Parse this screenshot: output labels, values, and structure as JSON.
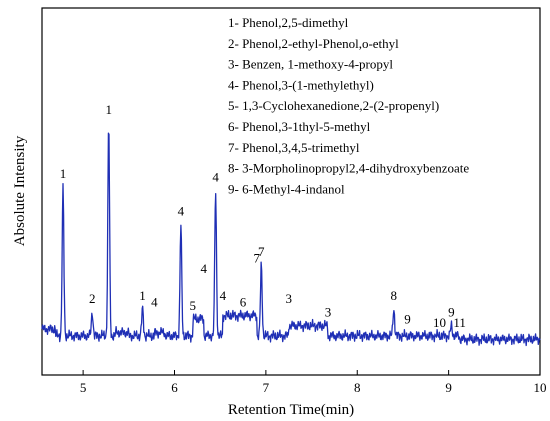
{
  "chart_data": {
    "type": "line",
    "title": "",
    "xlabel": "Retention Time(min)",
    "ylabel": "Absolute Intensity",
    "xlim": [
      4.55,
      10
    ],
    "ylim": [
      0,
      100
    ],
    "x_ticks": [
      5,
      6,
      7,
      8,
      9,
      10
    ],
    "y_ticks": [],
    "grid": false,
    "line_color": "#1f2fb5",
    "legend_placement": "top-right",
    "legend": [
      "1- Phenol,2,5-dimethyl",
      "2- Phenol,2-ethyl-Phenol,o-ethyl",
      "3- Benzen, 1-methoxy-4-propyl",
      "4- Phenol,3-(1-methylethyl)",
      "5- 1,3-Cyclohexanedione,2-(2-propenyl)",
      "6- Phenol,3-1thyl-5-methyl",
      "7- Phenol,3,4,5-trimethyl",
      "8- 3-Morpholinopropyl2,4-dihydroxybenzoate",
      "9- 6-Methyl-4-indanol"
    ],
    "series": [
      {
        "values": [
          {
            "x": 4.55,
            "y": 8
          },
          {
            "x": 4.7,
            "y": 5
          },
          {
            "x": 4.78,
            "y": 47
          },
          {
            "x": 4.85,
            "y": 3
          },
          {
            "x": 5.0,
            "y": 3
          },
          {
            "x": 5.1,
            "y": 10
          },
          {
            "x": 5.2,
            "y": 3
          },
          {
            "x": 5.28,
            "y": 66
          },
          {
            "x": 5.35,
            "y": 4
          },
          {
            "x": 5.5,
            "y": 4
          },
          {
            "x": 5.65,
            "y": 11
          },
          {
            "x": 5.78,
            "y": 9
          },
          {
            "x": 5.9,
            "y": 4
          },
          {
            "x": 6.07,
            "y": 36
          },
          {
            "x": 6.2,
            "y": 8
          },
          {
            "x": 6.32,
            "y": 19
          },
          {
            "x": 6.45,
            "y": 46
          },
          {
            "x": 6.53,
            "y": 11
          },
          {
            "x": 6.75,
            "y": 9
          },
          {
            "x": 6.9,
            "y": 22
          },
          {
            "x": 6.95,
            "y": 24
          },
          {
            "x": 7.25,
            "y": 10
          },
          {
            "x": 7.68,
            "y": 6
          },
          {
            "x": 8.4,
            "y": 11
          },
          {
            "x": 8.55,
            "y": 4
          },
          {
            "x": 8.9,
            "y": 3
          },
          {
            "x": 9.03,
            "y": 6
          },
          {
            "x": 9.12,
            "y": 3
          },
          {
            "x": 9.5,
            "y": 2
          },
          {
            "x": 10.0,
            "y": 3
          }
        ]
      }
    ],
    "peak_labels": [
      {
        "text": "1",
        "x": 4.78,
        "y": 47
      },
      {
        "text": "2",
        "x": 5.1,
        "y": 10
      },
      {
        "text": "1",
        "x": 5.28,
        "y": 66
      },
      {
        "text": "1",
        "x": 5.65,
        "y": 11
      },
      {
        "text": "4",
        "x": 5.78,
        "y": 9
      },
      {
        "text": "4",
        "x": 6.07,
        "y": 36
      },
      {
        "text": "5",
        "x": 6.2,
        "y": 8
      },
      {
        "text": "4",
        "x": 6.32,
        "y": 19
      },
      {
        "text": "4",
        "x": 6.45,
        "y": 46
      },
      {
        "text": "4",
        "x": 6.53,
        "y": 11
      },
      {
        "text": "6",
        "x": 6.75,
        "y": 9
      },
      {
        "text": "7",
        "x": 6.9,
        "y": 22
      },
      {
        "text": "7",
        "x": 6.95,
        "y": 24
      },
      {
        "text": "3",
        "x": 7.25,
        "y": 10
      },
      {
        "text": "3",
        "x": 7.68,
        "y": 6
      },
      {
        "text": "8",
        "x": 8.4,
        "y": 11
      },
      {
        "text": "9",
        "x": 8.55,
        "y": 4
      },
      {
        "text": "10",
        "x": 8.9,
        "y": 3
      },
      {
        "text": "9",
        "x": 9.03,
        "y": 6
      },
      {
        "text": "11",
        "x": 9.12,
        "y": 3
      }
    ]
  }
}
